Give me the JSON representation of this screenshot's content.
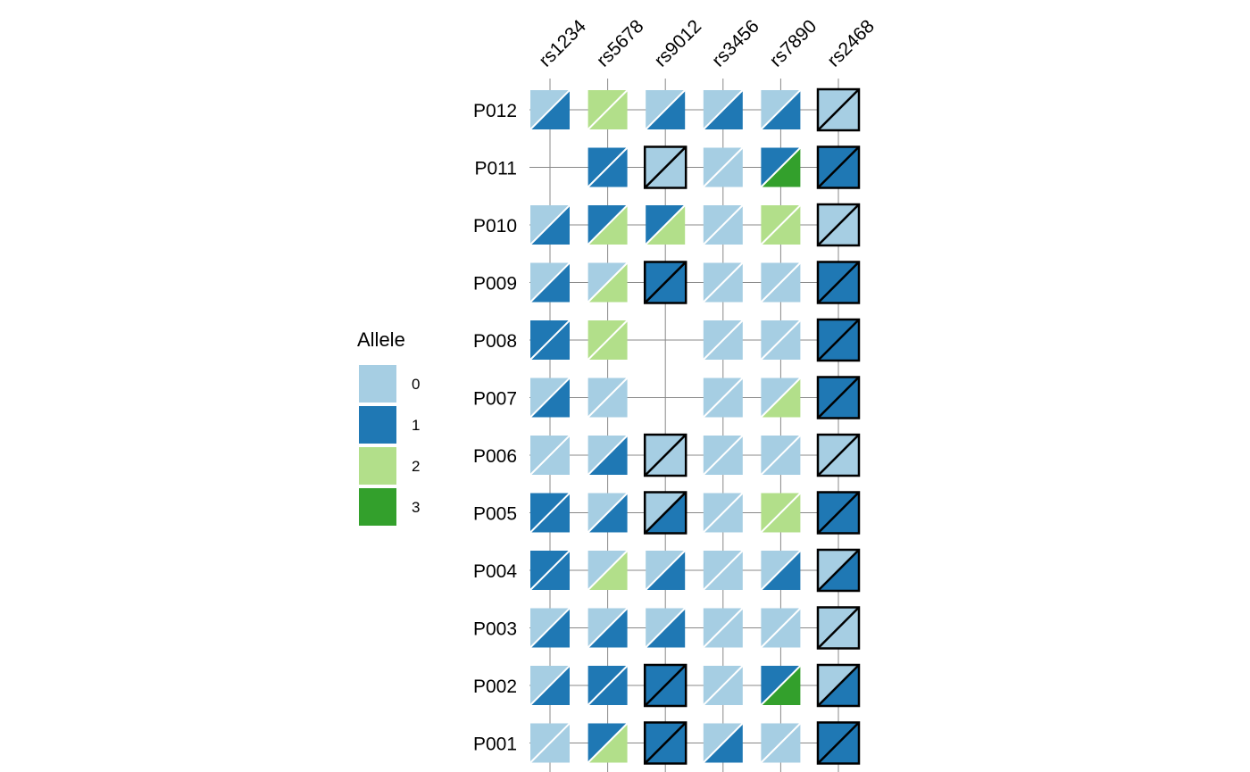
{
  "chart_data": {
    "type": "heatmap",
    "title": "",
    "description_of_cells": "each cell split diagonally: upper-left allele / lower-right allele; highlighted cells have black outline",
    "columns": [
      "rs1234",
      "rs5678",
      "rs9012",
      "rs3456",
      "rs7890",
      "rs2468"
    ],
    "rows": [
      "P012",
      "P011",
      "P010",
      "P009",
      "P008",
      "P007",
      "P006",
      "P005",
      "P004",
      "P003",
      "P002",
      "P001"
    ],
    "cells": [
      [
        [
          0,
          1,
          false
        ],
        [
          2,
          2,
          false
        ],
        [
          0,
          1,
          false
        ],
        [
          0,
          1,
          false
        ],
        [
          0,
          1,
          false
        ],
        [
          0,
          0,
          true
        ]
      ],
      [
        null,
        [
          1,
          1,
          false
        ],
        [
          0,
          0,
          true
        ],
        [
          0,
          0,
          false
        ],
        [
          1,
          3,
          false
        ],
        [
          1,
          1,
          true
        ]
      ],
      [
        [
          0,
          1,
          false
        ],
        [
          1,
          2,
          false
        ],
        [
          1,
          2,
          false
        ],
        [
          0,
          0,
          false
        ],
        [
          2,
          2,
          false
        ],
        [
          0,
          0,
          true
        ]
      ],
      [
        [
          0,
          1,
          false
        ],
        [
          0,
          2,
          false
        ],
        [
          1,
          1,
          true
        ],
        [
          0,
          0,
          false
        ],
        [
          0,
          0,
          false
        ],
        [
          1,
          1,
          true
        ]
      ],
      [
        [
          1,
          1,
          false
        ],
        [
          2,
          2,
          false
        ],
        null,
        [
          0,
          0,
          false
        ],
        [
          0,
          0,
          false
        ],
        [
          1,
          1,
          true
        ]
      ],
      [
        [
          0,
          1,
          false
        ],
        [
          0,
          0,
          false
        ],
        null,
        [
          0,
          0,
          false
        ],
        [
          0,
          2,
          false
        ],
        [
          1,
          1,
          true
        ]
      ],
      [
        [
          0,
          0,
          false
        ],
        [
          0,
          1,
          false
        ],
        [
          0,
          0,
          true
        ],
        [
          0,
          0,
          false
        ],
        [
          0,
          0,
          false
        ],
        [
          0,
          0,
          true
        ]
      ],
      [
        [
          1,
          1,
          false
        ],
        [
          0,
          1,
          false
        ],
        [
          0,
          1,
          true
        ],
        [
          0,
          0,
          false
        ],
        [
          2,
          2,
          false
        ],
        [
          1,
          1,
          true
        ]
      ],
      [
        [
          1,
          1,
          false
        ],
        [
          0,
          2,
          false
        ],
        [
          0,
          1,
          false
        ],
        [
          0,
          0,
          false
        ],
        [
          0,
          1,
          false
        ],
        [
          0,
          1,
          true
        ]
      ],
      [
        [
          0,
          1,
          false
        ],
        [
          0,
          1,
          false
        ],
        [
          0,
          1,
          false
        ],
        [
          0,
          0,
          false
        ],
        [
          0,
          0,
          false
        ],
        [
          0,
          0,
          true
        ]
      ],
      [
        [
          0,
          1,
          false
        ],
        [
          1,
          1,
          false
        ],
        [
          1,
          1,
          true
        ],
        [
          0,
          0,
          false
        ],
        [
          1,
          3,
          false
        ],
        [
          0,
          1,
          true
        ]
      ],
      [
        [
          0,
          0,
          false
        ],
        [
          1,
          2,
          false
        ],
        [
          1,
          1,
          true
        ],
        [
          0,
          1,
          false
        ],
        [
          0,
          0,
          false
        ],
        [
          1,
          1,
          true
        ]
      ]
    ],
    "legend": {
      "title": "Allele",
      "position": "left",
      "entries": [
        {
          "label": "0",
          "color": "#a6cee3"
        },
        {
          "label": "1",
          "color": "#1f78b4"
        },
        {
          "label": "2",
          "color": "#b2df8a"
        },
        {
          "label": "3",
          "color": "#33a02c"
        }
      ]
    }
  }
}
